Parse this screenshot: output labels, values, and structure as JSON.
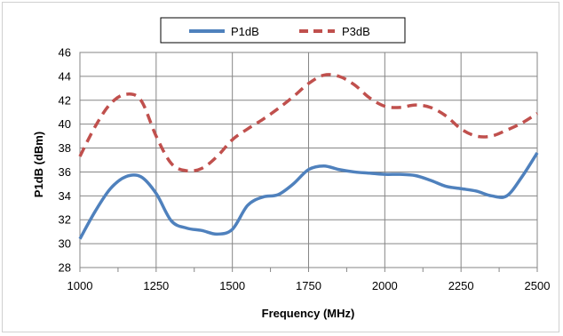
{
  "chart_data": {
    "type": "line",
    "title": "",
    "xlabel": "Frequency (MHz)",
    "ylabel": "P1dB (dBm)",
    "xlim": [
      1000,
      2500
    ],
    "ylim": [
      28,
      46
    ],
    "xticks": [
      1000,
      1250,
      1500,
      1750,
      2000,
      2250,
      2500
    ],
    "yticks": [
      28,
      30,
      32,
      34,
      36,
      38,
      40,
      42,
      44,
      46
    ],
    "x_minor_step": 125,
    "grid": true,
    "legend_position": "top-center",
    "series": [
      {
        "name": "P1dB",
        "color": "#4f81bd",
        "dash": "solid",
        "x": [
          1000,
          1050,
          1100,
          1150,
          1200,
          1250,
          1300,
          1350,
          1400,
          1450,
          1500,
          1550,
          1600,
          1650,
          1700,
          1750,
          1800,
          1850,
          1900,
          1950,
          2000,
          2050,
          2100,
          2150,
          2200,
          2250,
          2300,
          2350,
          2400,
          2450,
          2500
        ],
        "y": [
          30.4,
          32.7,
          34.6,
          35.6,
          35.6,
          34.2,
          31.9,
          31.3,
          31.1,
          30.8,
          31.2,
          33.2,
          33.9,
          34.1,
          35.0,
          36.2,
          36.5,
          36.2,
          36.0,
          35.9,
          35.8,
          35.8,
          35.7,
          35.3,
          34.8,
          34.6,
          34.4,
          34.0,
          34.0,
          35.6,
          37.6
        ]
      },
      {
        "name": "P3dB",
        "color": "#c0504d",
        "dash": "dashed",
        "x": [
          1000,
          1050,
          1100,
          1150,
          1200,
          1250,
          1300,
          1350,
          1400,
          1450,
          1500,
          1550,
          1600,
          1650,
          1700,
          1750,
          1800,
          1850,
          1900,
          1950,
          2000,
          2050,
          2100,
          2150,
          2200,
          2250,
          2300,
          2350,
          2400,
          2450,
          2500
        ],
        "y": [
          37.3,
          39.8,
          41.7,
          42.5,
          42.0,
          39.0,
          36.7,
          36.1,
          36.3,
          37.3,
          38.7,
          39.6,
          40.4,
          41.3,
          42.3,
          43.4,
          44.1,
          44.0,
          43.3,
          42.2,
          41.5,
          41.4,
          41.6,
          41.4,
          40.7,
          39.6,
          39.0,
          39.0,
          39.5,
          40.1,
          40.9
        ]
      }
    ]
  }
}
